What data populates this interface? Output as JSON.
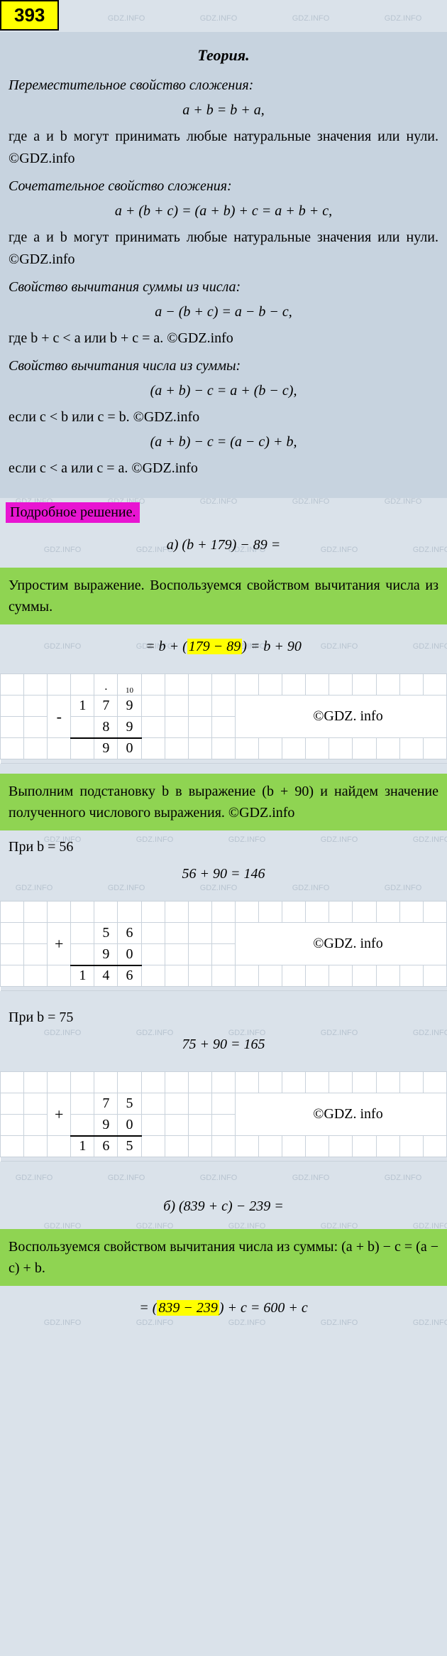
{
  "badge": "393",
  "theory": {
    "title": "Теория.",
    "p1": "Переместительное свойство сложения:",
    "f1": "a + b = b + a,",
    "p1b": "где a и b могут принимать любые натуральные значения или нули. ©GDZ.info",
    "p2": "Сочетательное свойство сложения:",
    "f2": "a + (b + c) = (a + b) + c = a + b + c,",
    "p2b": "где a и b могут принимать любые натуральные значения или нули. ©GDZ.info",
    "p3": "Свойство вычитания суммы из числа:",
    "f3": "a − (b + c) = a − b − c,",
    "p3b": "где b + c < a или b + c = a. ©GDZ.info",
    "p4": "Свойство вычитания числа из суммы:",
    "f4": "(a + b) − c = a + (b − c),",
    "p4b": "если  c < b или c = b. ©GDZ.info",
    "f5": "(a + b) − c = (a − c) + b,",
    "p5b": "если  c < a или c = a. ©GDZ.info"
  },
  "pink": "Подробное решение.",
  "partA": {
    "expr1": "а) (b + 179) − 89 =",
    "green1": "Упростим выражение. Воспользуемся свойством вычитания числа из суммы.",
    "expr2_pre": "= b + (",
    "expr2_hl": "179 − 89",
    "expr2_post": ") = b + 90",
    "calc1": {
      "carry": "10",
      "r1": [
        "1",
        "7",
        "9"
      ],
      "r2": [
        "8",
        "9"
      ],
      "res": [
        "9",
        "0"
      ],
      "op": "-",
      "copyright": "©GDZ. info"
    },
    "green2": "Выполним подстановку b в выражение (b + 90) и найдем значение полученного числового выражения. ©GDZ.info",
    "case1_label": "При b = 56",
    "case1_expr": "56 + 90 = 146",
    "calc2": {
      "r1": [
        "5",
        "6"
      ],
      "r2": [
        "9",
        "0"
      ],
      "res": [
        "1",
        "4",
        "6"
      ],
      "op": "+",
      "copyright": "©GDZ. info"
    },
    "case2_label": "При b = 75",
    "case2_expr": "75 + 90 = 165",
    "calc3": {
      "r1": [
        "7",
        "5"
      ],
      "r2": [
        "9",
        "0"
      ],
      "res": [
        "1",
        "6",
        "5"
      ],
      "op": "+",
      "copyright": "©GDZ. info"
    }
  },
  "partB": {
    "expr1": "б) (839 + c) − 239 =",
    "green1": "Воспользуемся свойством вычитания числа из суммы: (a + b) − c = (a − c) + b.",
    "expr2_pre": "= (",
    "expr2_hl": "839 − 239",
    "expr2_post": ") + c = 600 + c"
  },
  "wm_text": "GDZ.INFO"
}
